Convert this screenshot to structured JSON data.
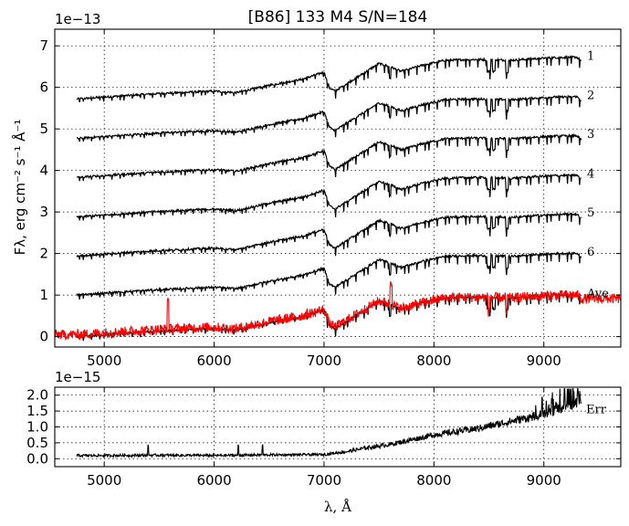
{
  "chart_data": [
    {
      "type": "line",
      "title": "[B86] 133  M4  S/N=184",
      "offset_label": "1e−13",
      "ylabel": "Fλ, erg cm⁻² s⁻¹ Å⁻¹",
      "xlabel": "",
      "xlim": [
        4550,
        9700
      ],
      "ylim": [
        -0.25,
        7.4
      ],
      "x_ticks": [
        5000,
        6000,
        7000,
        8000,
        9000
      ],
      "x_tick_labels": [
        "5000",
        "6000",
        "7000",
        "8000",
        "9000"
      ],
      "y_ticks": [
        0,
        1,
        2,
        3,
        4,
        5,
        6,
        7
      ],
      "y_tick_labels": [
        "0",
        "1",
        "2",
        "3",
        "4",
        "5",
        "6",
        "7"
      ],
      "grid": true,
      "profile_x": [
        4750,
        5000,
        5500,
        6000,
        6200,
        6500,
        6800,
        7000,
        7050,
        7100,
        7200,
        7300,
        7500,
        7600,
        7700,
        7900,
        8100,
        8300,
        8500,
        8700,
        8900,
        9100,
        9300,
        9340
      ],
      "profile_y": [
        0.0,
        0.05,
        0.14,
        0.2,
        0.16,
        0.35,
        0.5,
        0.68,
        0.28,
        0.2,
        0.38,
        0.55,
        0.9,
        0.82,
        0.7,
        0.86,
        0.98,
        1.0,
        1.0,
        0.98,
        1.02,
        1.05,
        1.06,
        0.96
      ],
      "series": [
        {
          "name": "1",
          "x_range": [
            4750,
            9340
          ],
          "baseline": 5.72,
          "amplitude": 0.95,
          "color": "#000000"
        },
        {
          "name": "2",
          "x_range": [
            4750,
            9340
          ],
          "baseline": 4.77,
          "amplitude": 0.95,
          "color": "#000000"
        },
        {
          "name": "3",
          "x_range": [
            4750,
            9340
          ],
          "baseline": 3.83,
          "amplitude": 0.95,
          "color": "#000000"
        },
        {
          "name": "4",
          "x_range": [
            4750,
            9340
          ],
          "baseline": 2.88,
          "amplitude": 0.95,
          "color": "#000000"
        },
        {
          "name": "5",
          "x_range": [
            4750,
            9340
          ],
          "baseline": 1.94,
          "amplitude": 0.95,
          "color": "#000000"
        },
        {
          "name": "6",
          "x_range": [
            4750,
            9340
          ],
          "baseline": 1.0,
          "amplitude": 0.95,
          "color": "#000000"
        },
        {
          "name": "Ave",
          "x_range": [
            4750,
            9340
          ],
          "baseline": 0.0,
          "amplitude": 0.95,
          "color": "#000000"
        },
        {
          "name": "",
          "x_range": [
            4550,
            9700
          ],
          "baseline": 0.05,
          "amplitude": 0.9,
          "color": "#ff0000"
        }
      ]
    },
    {
      "type": "line",
      "offset_label": "1e−15",
      "xlabel": "λ, Å",
      "ylabel": "",
      "xlim": [
        4550,
        9700
      ],
      "ylim": [
        -0.25,
        2.25
      ],
      "x_ticks": [
        5000,
        6000,
        7000,
        8000,
        9000
      ],
      "x_tick_labels": [
        "5000",
        "6000",
        "7000",
        "8000",
        "9000"
      ],
      "y_ticks": [
        0.0,
        0.5,
        1.0,
        1.5,
        2.0
      ],
      "y_tick_labels": [
        "0.0",
        "0.5",
        "1.0",
        "1.5",
        "2.0"
      ],
      "grid": true,
      "series": [
        {
          "name": "Err",
          "color": "#000000",
          "x": [
            4750,
            5000,
            5500,
            6000,
            6500,
            7000,
            7100,
            7200,
            7400,
            7600,
            7800,
            8000,
            8200,
            8400,
            8600,
            8800,
            9000,
            9100,
            9200,
            9300,
            9340
          ],
          "y": [
            0.1,
            0.1,
            0.11,
            0.1,
            0.12,
            0.13,
            0.18,
            0.22,
            0.35,
            0.45,
            0.6,
            0.75,
            0.85,
            0.95,
            1.1,
            1.25,
            1.4,
            1.5,
            1.65,
            1.75,
            1.8
          ]
        }
      ]
    }
  ]
}
